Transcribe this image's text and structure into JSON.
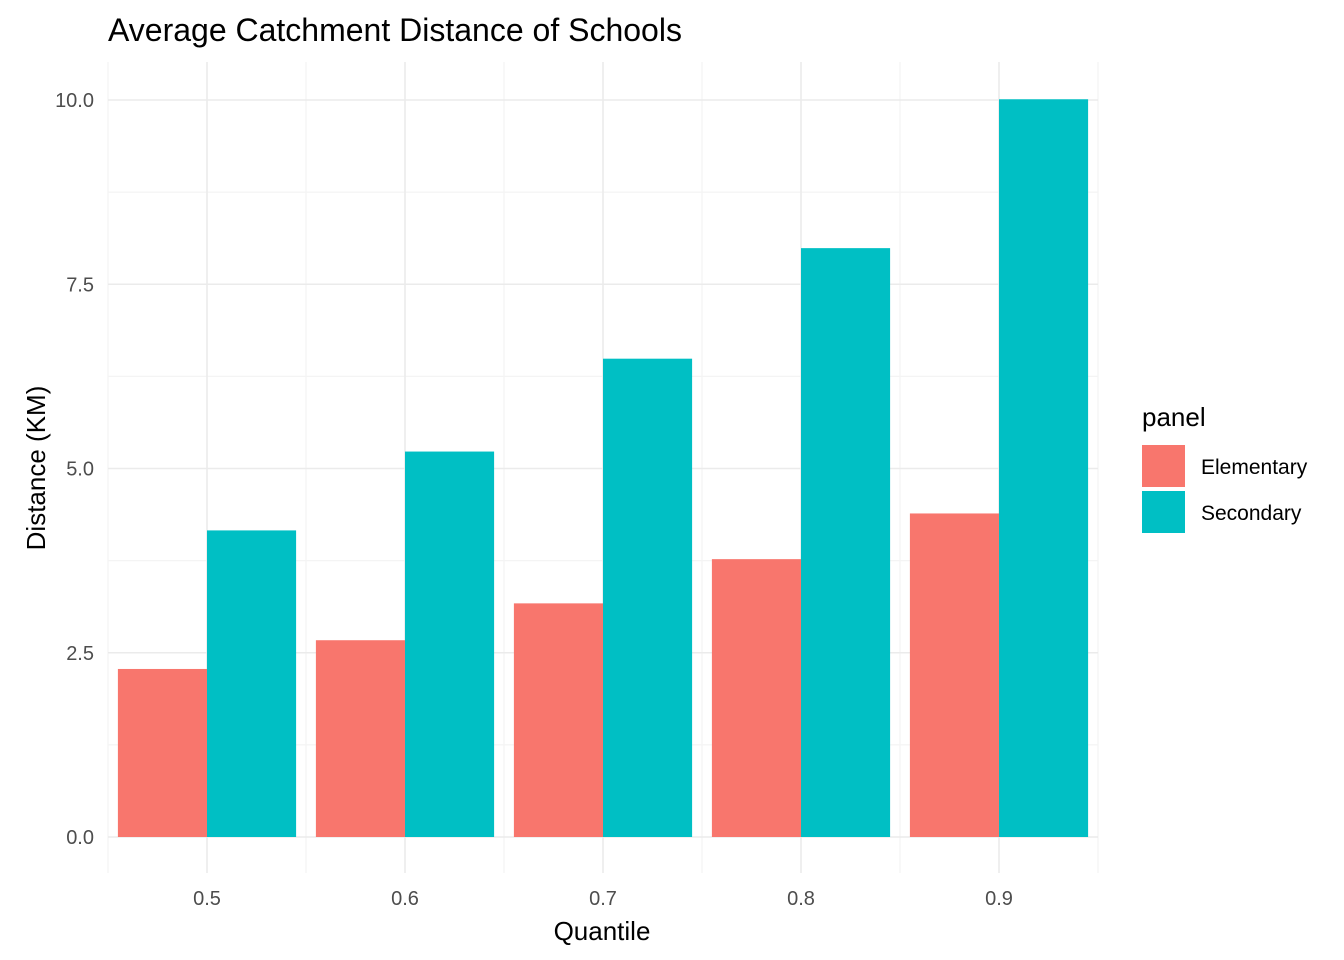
{
  "chart_data": {
    "type": "bar",
    "title": "Average Catchment Distance of Schools",
    "xlabel": "Quantile",
    "ylabel": "Distance (KM)",
    "categories": [
      "0.5",
      "0.6",
      "0.7",
      "0.8",
      "0.9"
    ],
    "series": [
      {
        "name": "Elementary",
        "color": "#F8766D",
        "values": [
          2.28,
          2.67,
          3.17,
          3.77,
          4.39
        ]
      },
      {
        "name": "Secondary",
        "color": "#00BFC4",
        "values": [
          4.16,
          5.23,
          6.49,
          7.99,
          10.01
        ]
      }
    ],
    "ylim": [
      -0.45,
      10.5
    ],
    "yticks": [
      0.0,
      2.5,
      5.0,
      7.5,
      10.0
    ],
    "ytick_labels": [
      "0.0",
      "2.5",
      "5.0",
      "7.5",
      "10.0"
    ],
    "grid": true,
    "legend": {
      "title": "panel",
      "position": "right"
    }
  }
}
